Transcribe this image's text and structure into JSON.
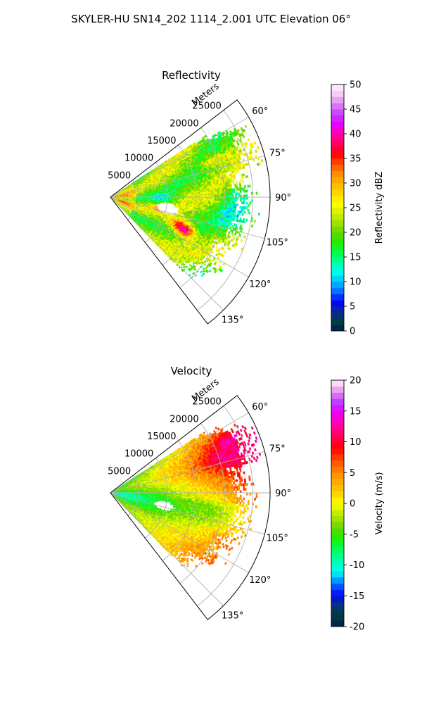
{
  "figure": {
    "suptitle": "SKYLER-HU  SN14_202  1114_2.001 UTC Elevation 06°"
  },
  "chart_data": [
    {
      "type": "polar-sector",
      "title": "Reflectivity",
      "range_label": "Meters",
      "range_ticks": [
        "5000",
        "10000",
        "15000",
        "20000",
        "25000"
      ],
      "range_tick_values": [
        5000,
        10000,
        15000,
        20000,
        25000
      ],
      "range_max": 28000,
      "angle_range_deg": [
        52.5,
        142.5
      ],
      "angle_ticks": [
        "60°",
        "75°",
        "90°",
        "105°",
        "120°",
        "135°"
      ],
      "angle_tick_values": [
        60,
        75,
        90,
        105,
        120,
        135
      ],
      "grid": true,
      "colorbar": {
        "label": "Reflectivity dBZ",
        "min": 0,
        "max": 50,
        "ticks": [
          "0",
          "5",
          "10",
          "15",
          "20",
          "25",
          "30",
          "35",
          "40",
          "45",
          "50"
        ],
        "tick_values": [
          0,
          5,
          10,
          15,
          20,
          25,
          30,
          35,
          40,
          45,
          50
        ],
        "stops": [
          [
            0,
            "#001a4d"
          ],
          [
            2,
            "#004040"
          ],
          [
            4,
            "#0a2a9a"
          ],
          [
            6,
            "#0000ff"
          ],
          [
            8,
            "#0070ff"
          ],
          [
            10,
            "#00bfff"
          ],
          [
            12,
            "#00ffee"
          ],
          [
            14,
            "#00ffaa"
          ],
          [
            16,
            "#00ff40"
          ],
          [
            18,
            "#22ee00"
          ],
          [
            20,
            "#66d400"
          ],
          [
            22,
            "#a0e400"
          ],
          [
            24,
            "#d8f000"
          ],
          [
            26,
            "#ffff00"
          ],
          [
            28,
            "#ffd600"
          ],
          [
            30,
            "#ffb400"
          ],
          [
            32,
            "#ff8c00"
          ],
          [
            34,
            "#ff4a00"
          ],
          [
            36,
            "#ff0000"
          ],
          [
            38,
            "#ff0060"
          ],
          [
            40,
            "#ff00b0"
          ],
          [
            42,
            "#e800ff"
          ],
          [
            44,
            "#c040ff"
          ],
          [
            46,
            "#e080f0"
          ],
          [
            48,
            "#f4c8f4"
          ],
          [
            50,
            "#fff0ff"
          ]
        ]
      },
      "features": [
        {
          "az": 112,
          "r": 13000,
          "sa": 5,
          "sr": 2300,
          "dv": 16
        },
        {
          "az": 103,
          "r": 9000,
          "sa": 4,
          "sr": 1600,
          "dv": 8
        },
        {
          "az": 114,
          "r": 14500,
          "sa": 4,
          "sr": 1800,
          "dv": 12
        },
        {
          "az": 70,
          "r": 19000,
          "sa": 3,
          "sr": 2800,
          "dv": 8
        },
        {
          "az": 92,
          "r": 9000,
          "sa": 6,
          "sr": 2200,
          "dv": -7
        },
        {
          "az": 88,
          "r": 21500,
          "sa": 4,
          "sr": 2500,
          "dv": -5
        },
        {
          "az": 98,
          "r": 22000,
          "sa": 7,
          "sr": 3500,
          "dv": -6
        },
        {
          "az": 130,
          "r": 22000,
          "sa": 5,
          "sr": 3500,
          "dv": -5
        },
        {
          "az": 110,
          "r": 2200,
          "sa": 3,
          "sr": 1100,
          "dv": 8
        },
        {
          "az": 88,
          "r": 2500,
          "sa": 5,
          "sr": 1500,
          "dv": 6
        }
      ],
      "gap": {
        "az": 101,
        "r": 10000,
        "sa": 5.5,
        "sr": 2000
      }
    },
    {
      "type": "polar-sector",
      "title": "Velocity",
      "range_label": "Meters",
      "range_ticks": [
        "5000",
        "10000",
        "15000",
        "20000",
        "25000"
      ],
      "range_tick_values": [
        5000,
        10000,
        15000,
        20000,
        25000
      ],
      "range_max": 28000,
      "angle_range_deg": [
        52.5,
        142.5
      ],
      "angle_ticks": [
        "60°",
        "75°",
        "90°",
        "105°",
        "120°",
        "135°"
      ],
      "angle_tick_values": [
        60,
        75,
        90,
        105,
        120,
        135
      ],
      "grid": true,
      "colorbar": {
        "label": "Velocity (m/s)",
        "min": -20,
        "max": 20,
        "ticks": [
          "-20",
          "-15",
          "-10",
          "-5",
          "0",
          "5",
          "10",
          "15",
          "20"
        ],
        "tick_values": [
          -20,
          -15,
          -10,
          -5,
          0,
          5,
          10,
          15,
          20
        ],
        "stops": [
          [
            -20,
            "#001a4d"
          ],
          [
            -18,
            "#004040"
          ],
          [
            -16,
            "#0a2a9a"
          ],
          [
            -15,
            "#0000ff"
          ],
          [
            -13,
            "#0070ff"
          ],
          [
            -12,
            "#00bfff"
          ],
          [
            -11,
            "#00ffee"
          ],
          [
            -9,
            "#00ffaa"
          ],
          [
            -7,
            "#00ff40"
          ],
          [
            -5.5,
            "#22ee00"
          ],
          [
            -4,
            "#66d400"
          ],
          [
            -2.5,
            "#a0e400"
          ],
          [
            -1,
            "#d8f000"
          ],
          [
            0,
            "#ffff00"
          ],
          [
            1.5,
            "#ffd600"
          ],
          [
            3,
            "#ffb400"
          ],
          [
            5,
            "#ff8c00"
          ],
          [
            7,
            "#ff4a00"
          ],
          [
            9,
            "#ff0000"
          ],
          [
            11,
            "#ff0060"
          ],
          [
            13,
            "#ff00b0"
          ],
          [
            15,
            "#e800ff"
          ],
          [
            16.5,
            "#c040ff"
          ],
          [
            18,
            "#e080f0"
          ],
          [
            19,
            "#f4c8f4"
          ],
          [
            20,
            "#fff0ff"
          ]
        ]
      },
      "features": [
        {
          "az": 72,
          "r": 20000,
          "sa": 6,
          "sr": 4000,
          "dv": 4
        },
        {
          "az": 65,
          "r": 22500,
          "sa": 3,
          "sr": 2500,
          "dv": 3
        },
        {
          "az": 112,
          "r": 22000,
          "sa": 3,
          "sr": 2500,
          "dv": 3
        },
        {
          "az": 100,
          "r": 18000,
          "sa": 6,
          "sr": 4000,
          "dv": -2
        },
        {
          "az": 125,
          "r": 13000,
          "sa": 6,
          "sr": 4000,
          "dv": -1
        }
      ],
      "gap": {
        "az": 103,
        "r": 9500,
        "sa": 4.5,
        "sr": 1800
      }
    }
  ]
}
